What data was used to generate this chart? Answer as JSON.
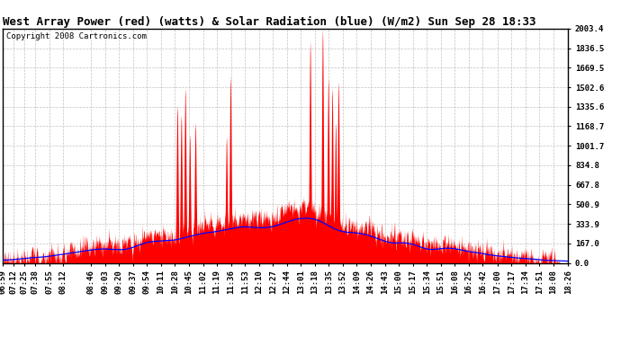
{
  "title": "West Array Power (red) (watts) & Solar Radiation (blue) (W/m2) Sun Sep 28 18:33",
  "copyright": "Copyright 2008 Cartronics.com",
  "background_color": "#ffffff",
  "plot_bg_color": "#ffffff",
  "grid_color": "#bbbbbb",
  "yticks": [
    0.0,
    167.0,
    333.9,
    500.9,
    667.8,
    834.8,
    1001.7,
    1168.7,
    1335.6,
    1502.6,
    1669.5,
    1836.5,
    2003.4
  ],
  "ymax": 2003.4,
  "ymin": 0.0,
  "x_labels": [
    "06:59",
    "07:12",
    "07:25",
    "07:38",
    "07:55",
    "08:12",
    "08:46",
    "09:03",
    "09:20",
    "09:37",
    "09:54",
    "10:11",
    "10:28",
    "10:45",
    "11:02",
    "11:19",
    "11:36",
    "11:53",
    "12:10",
    "12:27",
    "12:44",
    "13:01",
    "13:18",
    "13:35",
    "13:52",
    "14:09",
    "14:26",
    "14:43",
    "15:00",
    "15:17",
    "15:34",
    "15:51",
    "16:08",
    "16:25",
    "16:42",
    "17:00",
    "17:17",
    "17:34",
    "17:51",
    "18:08",
    "18:26"
  ],
  "red_color": "#ff0000",
  "blue_color": "#0000ff",
  "title_fontsize": 9,
  "copyright_fontsize": 6.5,
  "tick_fontsize": 6.5,
  "spike_times_norm": [
    0.308,
    0.315,
    0.322,
    0.33,
    0.34,
    0.395,
    0.402,
    0.543,
    0.565,
    0.575,
    0.582,
    0.588,
    0.593
  ],
  "spike_heights": [
    1350,
    1270,
    1500,
    1100,
    1200,
    1080,
    1600,
    1900,
    2003,
    1580,
    1500,
    1200,
    1550
  ]
}
